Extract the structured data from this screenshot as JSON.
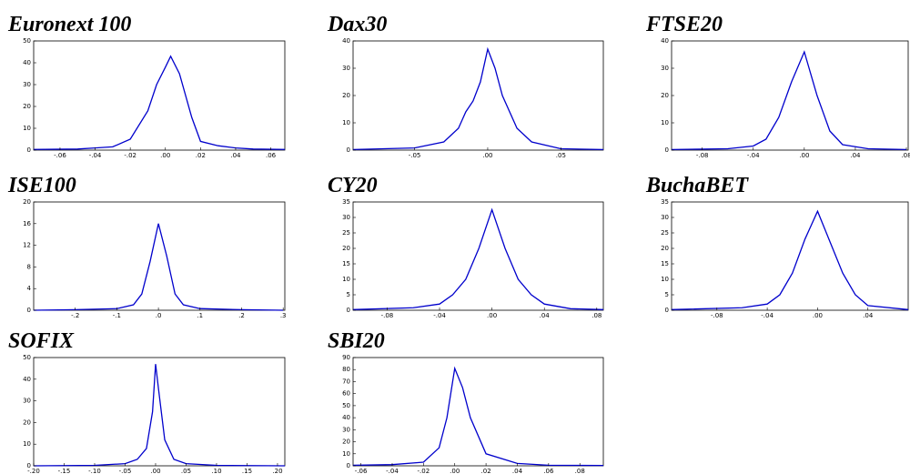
{
  "chart_data": [
    {
      "type": "line",
      "title": "Euronext 100",
      "color": "#0000cc",
      "x": [
        -0.075,
        -0.05,
        -0.04,
        -0.03,
        -0.02,
        -0.01,
        -0.005,
        0,
        0.003,
        0.008,
        0.015,
        0.02,
        0.03,
        0.04,
        0.05,
        0.068
      ],
      "values": [
        0.3,
        0.5,
        1,
        1.5,
        5,
        18,
        30,
        38,
        43,
        35,
        15,
        4,
        2,
        1,
        0.5,
        0.3
      ],
      "xlim": [
        -0.075,
        0.068
      ],
      "ylim": [
        0,
        50
      ],
      "yticks": [
        0,
        10,
        20,
        30,
        40,
        50
      ],
      "xticks": [
        {
          "value": -0.06,
          "label": "-.06"
        },
        {
          "value": -0.04,
          "label": "-.04"
        },
        {
          "value": -0.02,
          "label": "-.02"
        },
        {
          "value": 0,
          "label": ".00"
        },
        {
          "value": 0.02,
          "label": ".02"
        },
        {
          "value": 0.04,
          "label": ".04"
        },
        {
          "value": 0.06,
          "label": ".06"
        }
      ]
    },
    {
      "type": "line",
      "title": "Dax30",
      "color": "#0000cc",
      "x": [
        -0.092,
        -0.05,
        -0.03,
        -0.02,
        -0.015,
        -0.01,
        -0.005,
        0,
        0.005,
        0.01,
        0.02,
        0.03,
        0.05,
        0.079
      ],
      "values": [
        0.2,
        0.8,
        3,
        8,
        14,
        18,
        25,
        37,
        30,
        20,
        8,
        3,
        0.5,
        0.2
      ],
      "xlim": [
        -0.092,
        0.079
      ],
      "ylim": [
        0,
        40
      ],
      "yticks": [
        0,
        10,
        20,
        30,
        40
      ],
      "xticks": [
        {
          "value": -0.05,
          "label": "-.05"
        },
        {
          "value": 0,
          "label": ".00"
        },
        {
          "value": 0.05,
          "label": ".05"
        }
      ]
    },
    {
      "type": "line",
      "title": "FTSE20",
      "color": "#0000cc",
      "x": [
        -0.104,
        -0.06,
        -0.04,
        -0.03,
        -0.02,
        -0.01,
        0,
        0.01,
        0.02,
        0.03,
        0.05,
        0.08
      ],
      "values": [
        0.2,
        0.5,
        1.5,
        4,
        12,
        25,
        36,
        20,
        7,
        2,
        0.5,
        0.2
      ],
      "xlim": [
        -0.104,
        0.0814
      ],
      "ylim": [
        0,
        40
      ],
      "yticks": [
        0,
        10,
        20,
        30,
        40
      ],
      "xticks": [
        {
          "value": -0.08,
          "label": "-.08"
        },
        {
          "value": -0.04,
          "label": "-.04"
        },
        {
          "value": 0,
          "label": ".00"
        },
        {
          "value": 0.04,
          "label": ".04"
        },
        {
          "value": 0.08,
          "label": ".08"
        }
      ]
    },
    {
      "type": "line",
      "title": "ISE100",
      "color": "#0000cc",
      "x": [
        -0.3,
        -0.2,
        -0.1,
        -0.06,
        -0.04,
        -0.02,
        0,
        0.02,
        0.04,
        0.06,
        0.1,
        0.2,
        0.3
      ],
      "values": [
        0,
        0.1,
        0.3,
        1,
        3,
        9,
        16,
        10,
        3,
        1,
        0.3,
        0.1,
        0
      ],
      "xlim": [
        -0.3,
        0.304
      ],
      "ylim": [
        0,
        20
      ],
      "yticks": [
        0,
        4,
        8,
        12,
        16,
        20
      ],
      "xticks": [
        {
          "value": -0.2,
          "label": "-.2"
        },
        {
          "value": -0.1,
          "label": "-.1"
        },
        {
          "value": 0,
          "label": ".0"
        },
        {
          "value": 0.1,
          "label": ".1"
        },
        {
          "value": 0.2,
          "label": ".2"
        },
        {
          "value": 0.3,
          "label": ".3"
        }
      ]
    },
    {
      "type": "line",
      "title": "CY20",
      "color": "#0000cc",
      "x": [
        -0.106,
        -0.06,
        -0.04,
        -0.03,
        -0.02,
        -0.01,
        0,
        0.01,
        0.02,
        0.03,
        0.04,
        0.06,
        0.085
      ],
      "values": [
        0.2,
        0.8,
        2,
        5,
        10,
        20,
        32.5,
        20,
        10,
        5,
        2,
        0.5,
        0.2
      ],
      "xlim": [
        -0.106,
        0.085
      ],
      "ylim": [
        0,
        35
      ],
      "yticks": [
        0,
        5,
        10,
        15,
        20,
        25,
        30,
        35
      ],
      "xticks": [
        {
          "value": -0.08,
          "label": "-.08"
        },
        {
          "value": -0.04,
          "label": "-.04"
        },
        {
          "value": 0,
          "label": ".00"
        },
        {
          "value": 0.04,
          "label": ".04"
        },
        {
          "value": 0.08,
          "label": ".08"
        }
      ]
    },
    {
      "type": "line",
      "title": "BuchaBET",
      "color": "#0000cc",
      "x": [
        -0.116,
        -0.06,
        -0.04,
        -0.03,
        -0.02,
        -0.01,
        0,
        0.01,
        0.02,
        0.03,
        0.04,
        0.072
      ],
      "values": [
        0.2,
        0.8,
        2,
        5,
        12,
        23,
        32,
        22,
        12,
        5,
        1.5,
        0.2
      ],
      "xlim": [
        -0.116,
        0.072
      ],
      "ylim": [
        0,
        35
      ],
      "yticks": [
        0,
        5,
        10,
        15,
        20,
        25,
        30,
        35
      ],
      "xticks": [
        {
          "value": -0.08,
          "label": "-.08"
        },
        {
          "value": -0.04,
          "label": "-.04"
        },
        {
          "value": 0,
          "label": ".00"
        },
        {
          "value": 0.04,
          "label": ".04"
        }
      ]
    },
    {
      "type": "line",
      "title": "SOFIX",
      "color": "#0000cc",
      "x": [
        -0.2,
        -0.1,
        -0.05,
        -0.03,
        -0.015,
        -0.005,
        0,
        0.005,
        0.015,
        0.03,
        0.05,
        0.1,
        0.212
      ],
      "values": [
        0,
        0.2,
        1,
        3,
        8,
        25,
        47,
        35,
        12,
        3,
        1,
        0.2,
        0
      ],
      "xlim": [
        -0.2,
        0.212
      ],
      "ylim": [
        0,
        50
      ],
      "yticks": [
        0,
        10,
        20,
        30,
        40,
        50
      ],
      "xticks": [
        {
          "value": -0.2,
          "label": "-.20"
        },
        {
          "value": -0.15,
          "label": "-.15"
        },
        {
          "value": -0.1,
          "label": "-.10"
        },
        {
          "value": -0.05,
          "label": "-.05"
        },
        {
          "value": 0,
          "label": ".00"
        },
        {
          "value": 0.05,
          "label": ".05"
        },
        {
          "value": 0.1,
          "label": ".10"
        },
        {
          "value": 0.15,
          "label": ".15"
        },
        {
          "value": 0.2,
          "label": ".20"
        }
      ]
    },
    {
      "type": "line",
      "title": "SBI20",
      "color": "#0000cc",
      "x": [
        -0.065,
        -0.04,
        -0.02,
        -0.01,
        -0.005,
        0,
        0.005,
        0.01,
        0.02,
        0.04,
        0.06,
        0.095
      ],
      "values": [
        0.5,
        1,
        3,
        15,
        40,
        81,
        65,
        40,
        10,
        2,
        0.5,
        0.3
      ],
      "xlim": [
        -0.065,
        0.095
      ],
      "ylim": [
        0,
        90
      ],
      "yticks": [
        0,
        10,
        20,
        30,
        40,
        50,
        60,
        70,
        80,
        90
      ],
      "xticks": [
        {
          "value": -0.06,
          "label": "-.06"
        },
        {
          "value": -0.04,
          "label": "-.04"
        },
        {
          "value": -0.02,
          "label": "-.02"
        },
        {
          "value": 0,
          "label": ".00"
        },
        {
          "value": 0.02,
          "label": ".02"
        },
        {
          "value": 0.04,
          "label": ".04"
        },
        {
          "value": 0.06,
          "label": ".06"
        },
        {
          "value": 0.08,
          "label": ".08"
        }
      ]
    }
  ]
}
